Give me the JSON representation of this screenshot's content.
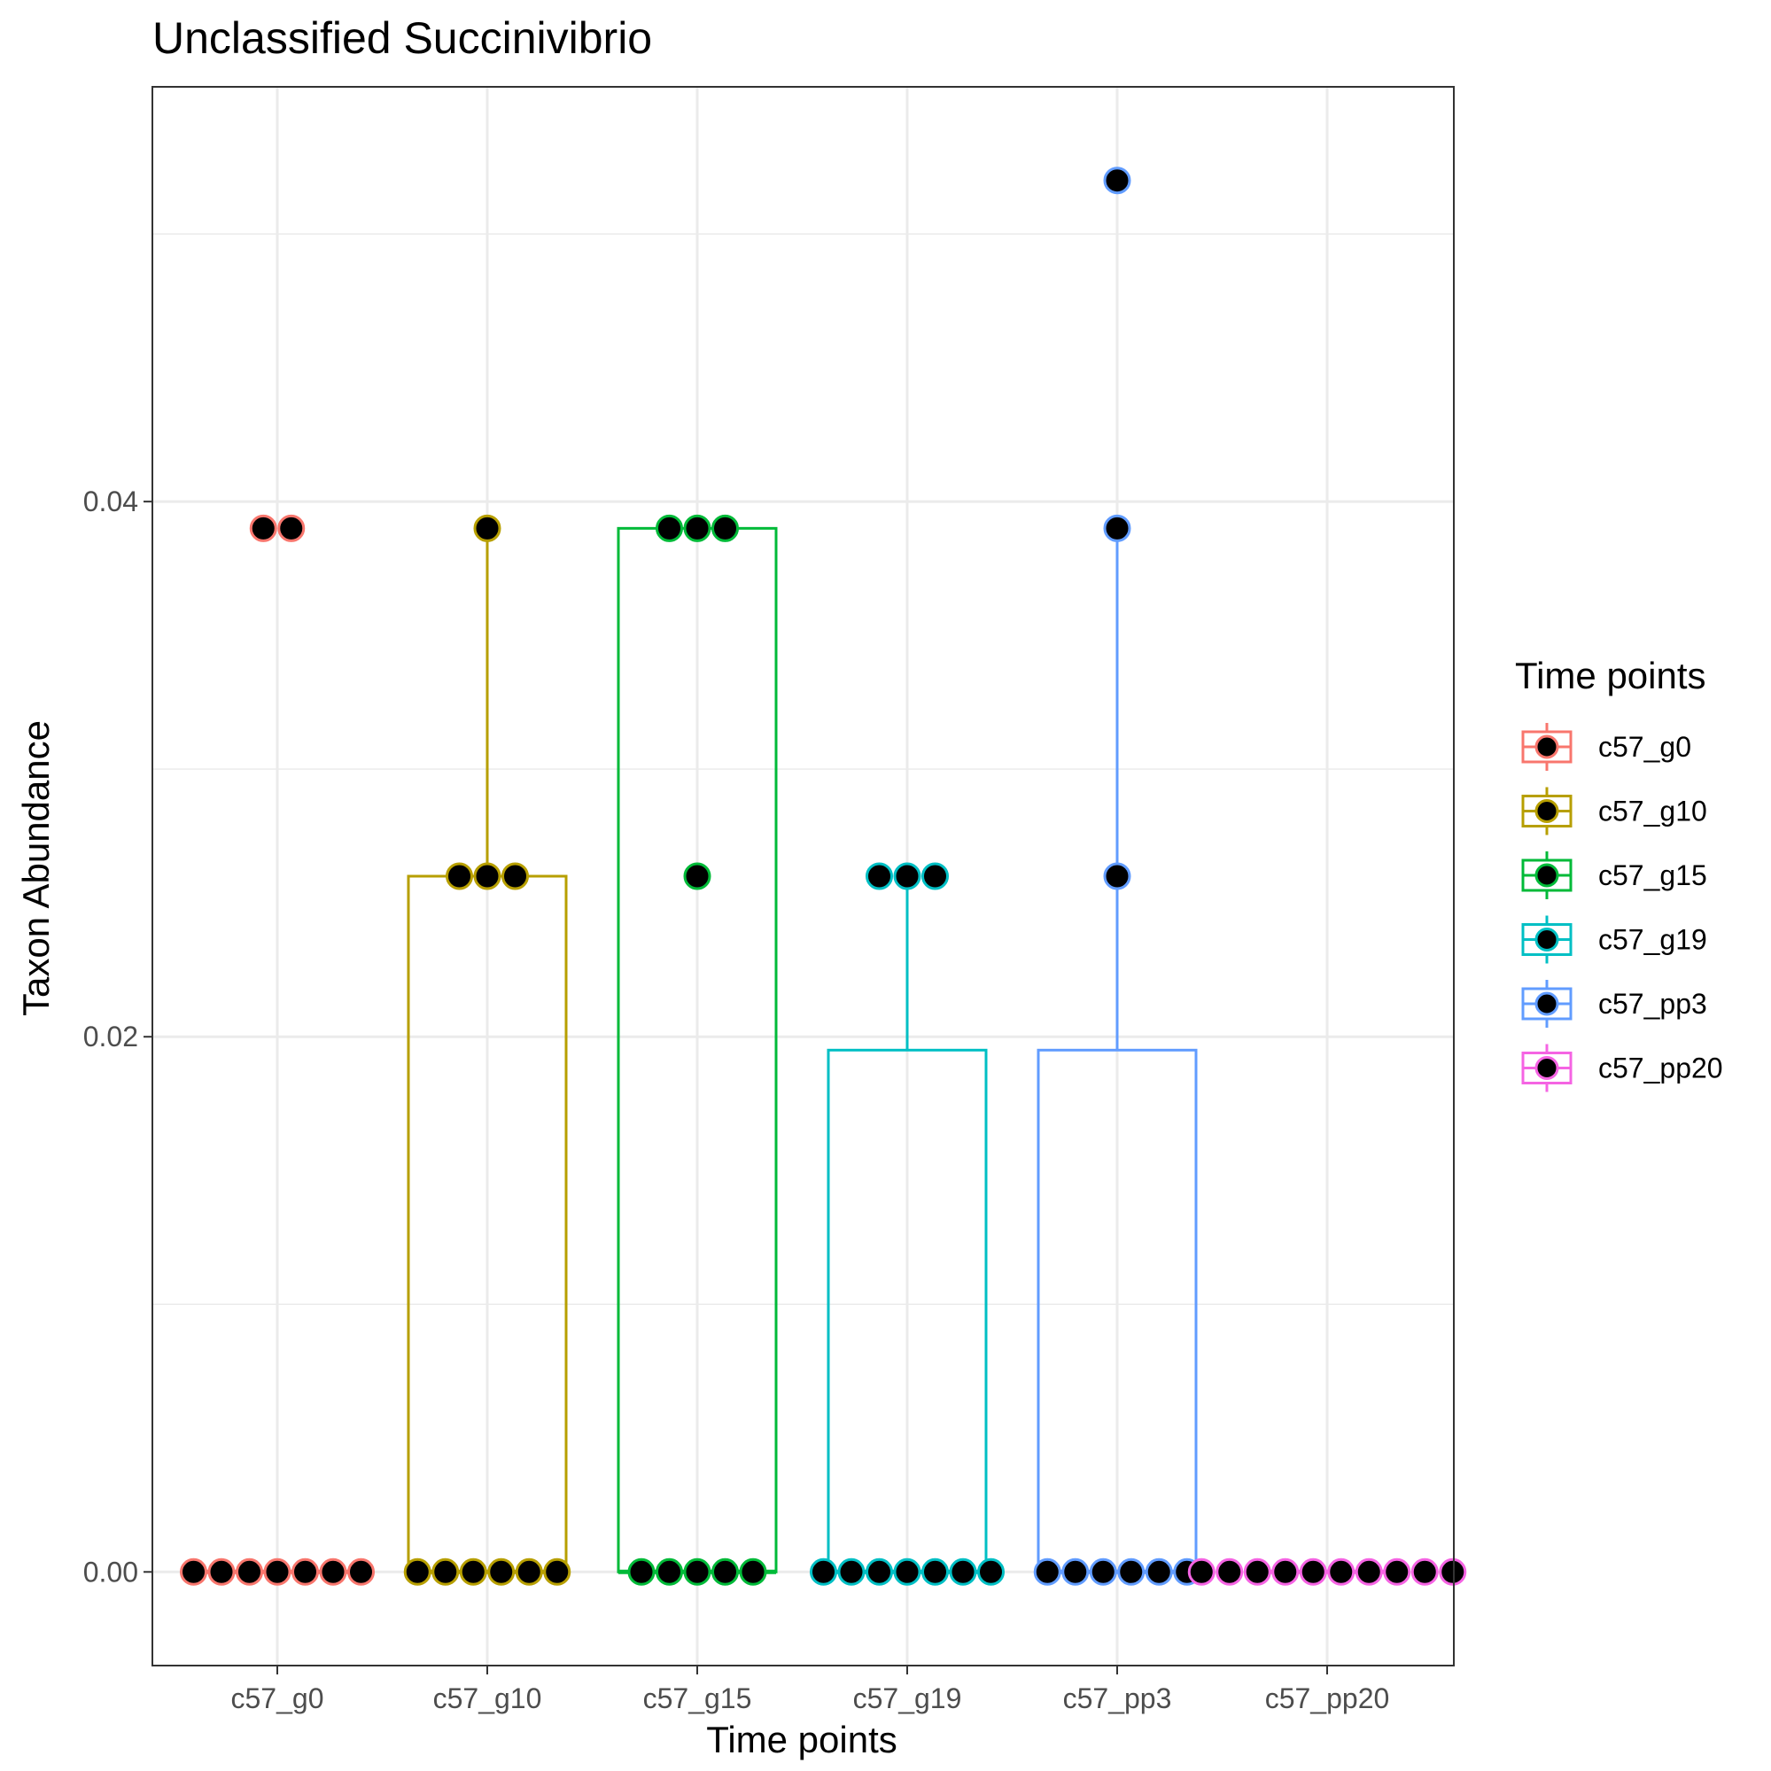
{
  "chart_data": {
    "type": "box",
    "title": "Unclassified  Succinivibrio",
    "xlabel": "Time points",
    "ylabel": "Taxon Abundance",
    "categories": [
      "c57_g0",
      "c57_g10",
      "c57_g15",
      "c57_g19",
      "c57_pp3",
      "c57_pp20"
    ],
    "yticks": [
      "0.00",
      "0.02",
      "0.04"
    ],
    "ylim": [
      -0.0035,
      0.0555
    ],
    "grid": true,
    "legend": {
      "title": "Time points",
      "placement": "right",
      "entries": [
        "c57_g0",
        "c57_g10",
        "c57_g15",
        "c57_g19",
        "c57_pp3",
        "c57_pp20"
      ]
    },
    "series": [
      {
        "category": "c57_g0",
        "color": "#F8766D",
        "box": {
          "q1": 0,
          "median": 0,
          "q3": 0,
          "whisker_low": 0,
          "whisker_high": 0
        },
        "points": [
          0.039,
          0.039,
          0,
          0,
          0,
          0,
          0,
          0,
          0
        ]
      },
      {
        "category": "c57_g10",
        "color": "#B79F00",
        "box": {
          "q1": 0,
          "median": 0,
          "q3": 0.026,
          "whisker_low": 0,
          "whisker_high": 0.039
        },
        "points": [
          0.039,
          0.026,
          0.026,
          0.026,
          0,
          0,
          0,
          0,
          0,
          0
        ]
      },
      {
        "category": "c57_g15",
        "color": "#00BA38",
        "box": {
          "q1": 0,
          "median": 0,
          "q3": 0.039,
          "whisker_low": 0,
          "whisker_high": 0.039
        },
        "points": [
          0.039,
          0.039,
          0.039,
          0.026,
          0,
          0,
          0,
          0,
          0
        ]
      },
      {
        "category": "c57_g19",
        "color": "#00BFC4",
        "box": {
          "q1": 0,
          "median": 0,
          "q3": 0.0195,
          "whisker_low": 0,
          "whisker_high": 0.026
        },
        "points": [
          0.026,
          0.026,
          0.026,
          0,
          0,
          0,
          0,
          0,
          0,
          0
        ]
      },
      {
        "category": "c57_pp3",
        "color": "#619CFF",
        "box": {
          "q1": 0,
          "median": 0,
          "q3": 0.0195,
          "whisker_low": 0,
          "whisker_high": 0.039
        },
        "points": [
          0.052,
          0.039,
          0.026,
          0,
          0,
          0,
          0,
          0,
          0
        ]
      },
      {
        "category": "c57_pp20",
        "color": "#F564E3",
        "box": {
          "q1": 0,
          "median": 0,
          "q3": 0,
          "whisker_low": 0,
          "whisker_high": 0
        },
        "points": [
          0,
          0,
          0,
          0,
          0,
          0,
          0,
          0,
          0,
          0
        ]
      }
    ]
  }
}
